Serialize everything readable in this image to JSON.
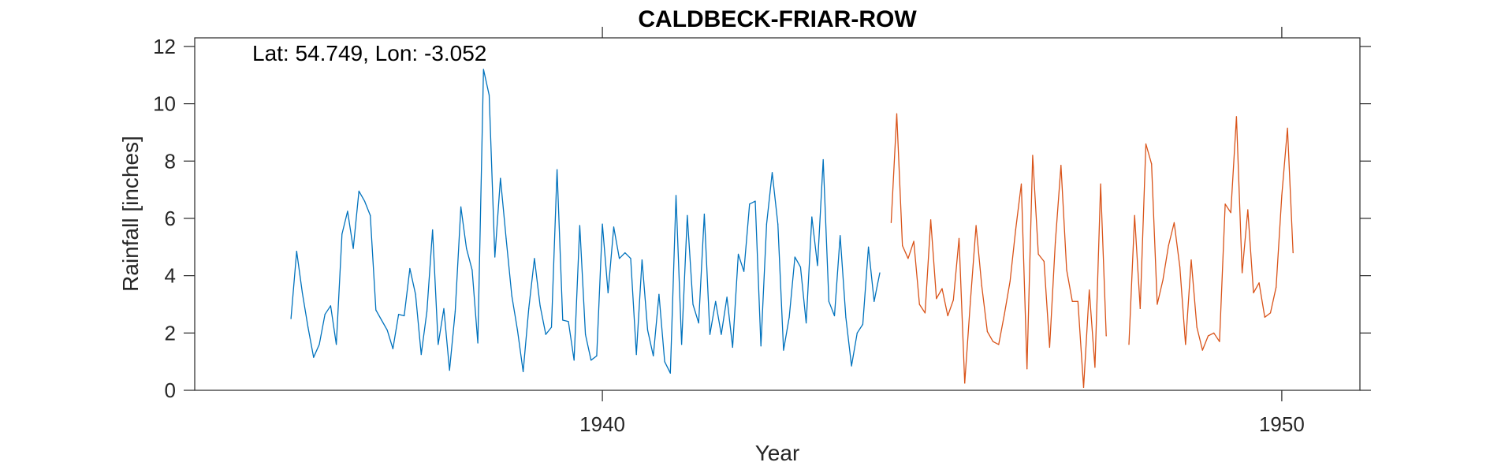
{
  "chart_data": {
    "type": "line",
    "title": "CALDBECK-FRIAR-ROW",
    "xlabel": "Year",
    "ylabel": "Rainfall [inches]",
    "annotation": "Lat: 54.749, Lon: -3.052",
    "xlim": [
      1934.0,
      1951.15
    ],
    "ylim": [
      0,
      12.3
    ],
    "xticks": [
      {
        "value": 1940,
        "label": "1940"
      },
      {
        "value": 1950,
        "label": "1950"
      }
    ],
    "yticks": [
      {
        "value": 0,
        "label": "0"
      },
      {
        "value": 2,
        "label": "2"
      },
      {
        "value": 4,
        "label": "4"
      },
      {
        "value": 6,
        "label": "6"
      },
      {
        "value": 8,
        "label": "8"
      },
      {
        "value": 10,
        "label": "10"
      },
      {
        "value": 12,
        "label": "12"
      }
    ],
    "grid": false,
    "series": [
      {
        "color": "#0072BD",
        "start_x": 1935.417,
        "step": 0.08333,
        "values": [
          2.5,
          4.85,
          3.4,
          2.2,
          1.15,
          1.6,
          2.65,
          2.95,
          1.6,
          5.45,
          6.25,
          4.95,
          6.95,
          6.6,
          6.1,
          2.8,
          2.45,
          2.1,
          1.45,
          2.65,
          2.6,
          4.25,
          3.35,
          1.25,
          2.75,
          5.6,
          1.6,
          2.85,
          0.7,
          2.75,
          6.4,
          4.95,
          4.2,
          1.65,
          11.2,
          10.3,
          4.65,
          7.4,
          5.3,
          3.3,
          2.1,
          0.65,
          2.85,
          4.6,
          2.95,
          1.95,
          2.2,
          7.7,
          2.45,
          2.4,
          1.05,
          5.75,
          1.95,
          1.05,
          1.2,
          5.8,
          3.4,
          5.7,
          4.6,
          4.8,
          4.6,
          1.25,
          4.55,
          2.1,
          1.2,
          3.35,
          1.0,
          0.6,
          6.8,
          1.6,
          6.1,
          3.0,
          2.35,
          6.15,
          1.95,
          3.1,
          1.95,
          3.25,
          1.5,
          4.75,
          4.15,
          6.5,
          6.6,
          1.55,
          5.8,
          7.6,
          5.8,
          1.4,
          2.55,
          4.65,
          4.3,
          2.35,
          6.05,
          4.35,
          8.05,
          3.1,
          2.6,
          5.4,
          2.55,
          0.85,
          2.0,
          2.3,
          5.0,
          3.1,
          4.1
        ]
      },
      {
        "color": "#D95319",
        "start_x": 1944.25,
        "step": 0.08333,
        "values": [
          5.85,
          9.65,
          5.05,
          4.6,
          5.2,
          3.0,
          2.7,
          5.95,
          3.2,
          3.55,
          2.6,
          3.15,
          5.3,
          0.25,
          3.1,
          5.75,
          3.65,
          2.05,
          1.7,
          1.6,
          2.65,
          3.8,
          5.6,
          7.2,
          0.75,
          8.2,
          4.75,
          4.5,
          1.5,
          5.15,
          7.85,
          4.2,
          3.1,
          3.1,
          0.1,
          3.5,
          0.8,
          7.2,
          1.9,
          null,
          null,
          null,
          1.6,
          6.1,
          2.85,
          8.6,
          7.9,
          3.0,
          3.85,
          5.05,
          5.85,
          4.3,
          1.6,
          4.55,
          2.2,
          1.4,
          1.9,
          2.0,
          1.7,
          6.5,
          6.2,
          9.55,
          4.1,
          6.3,
          3.4,
          3.75,
          2.55,
          2.7,
          3.6,
          6.8,
          9.15,
          4.8
        ]
      }
    ]
  }
}
